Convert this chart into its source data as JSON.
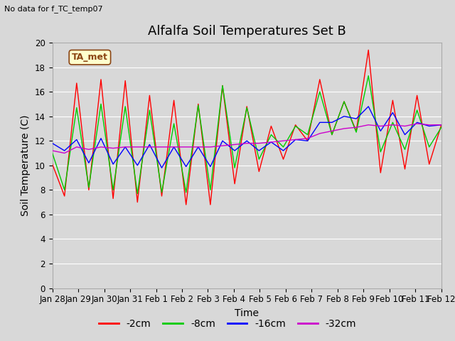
{
  "title": "Alfalfa Soil Temperatures Set B",
  "xlabel": "Time",
  "ylabel": "Soil Temperature (C)",
  "note": "No data for f_TC_temp07",
  "ta_met_label": "TA_met",
  "ylim": [
    0,
    20
  ],
  "yticks": [
    0,
    2,
    4,
    6,
    8,
    10,
    12,
    14,
    16,
    18,
    20
  ],
  "x_labels": [
    "Jan 28",
    "Jan 29",
    "Jan 30",
    "Jan 31",
    "Feb 1",
    "Feb 2",
    "Feb 3",
    "Feb 4",
    "Feb 5",
    "Feb 6",
    "Feb 7",
    "Feb 8",
    "Feb 9",
    "Feb 10",
    "Feb 11",
    "Feb 12"
  ],
  "colors": {
    "2cm": "#ff0000",
    "8cm": "#00cc00",
    "16cm": "#0000ff",
    "32cm": "#cc00cc"
  },
  "fig_bg_color": "#d8d8d8",
  "plot_bg_color": "#d8d8d8",
  "legend_labels": [
    "-2cm",
    "-8cm",
    "-16cm",
    "-32cm"
  ],
  "title_fontsize": 13,
  "axis_label_fontsize": 10,
  "tick_fontsize": 8.5,
  "note_fontsize": 8,
  "ta_met_fontsize": 9,
  "series_2cm": [
    10.1,
    7.5,
    16.7,
    8.0,
    17.0,
    7.3,
    16.9,
    7.0,
    15.7,
    7.5,
    15.3,
    6.8,
    15.0,
    6.8,
    16.5,
    8.5,
    14.8,
    9.5,
    13.2,
    10.5,
    13.3,
    12.0,
    17.0,
    12.5,
    15.2,
    12.8,
    19.4,
    9.4,
    15.3,
    9.7,
    15.7,
    10.1,
    13.3
  ],
  "series_8cm": [
    11.0,
    8.0,
    14.7,
    8.2,
    15.0,
    8.0,
    14.8,
    7.7,
    14.5,
    7.8,
    13.4,
    7.8,
    14.9,
    8.0,
    16.5,
    9.8,
    14.7,
    10.5,
    12.5,
    11.5,
    13.2,
    12.5,
    16.0,
    12.5,
    15.2,
    12.7,
    17.3,
    11.1,
    13.5,
    11.3,
    14.5,
    11.5,
    13.1
  ],
  "series_16cm": [
    11.8,
    11.2,
    12.1,
    10.2,
    12.2,
    10.1,
    11.5,
    10.0,
    11.7,
    9.8,
    11.5,
    9.9,
    11.5,
    9.9,
    12.0,
    11.2,
    12.0,
    11.2,
    11.9,
    11.2,
    12.1,
    12.0,
    13.5,
    13.5,
    14.0,
    13.8,
    14.8,
    12.8,
    14.3,
    12.5,
    13.5,
    13.2,
    13.3
  ],
  "series_32cm": [
    11.2,
    11.0,
    11.5,
    11.3,
    11.5,
    11.4,
    11.5,
    11.5,
    11.5,
    11.5,
    11.5,
    11.5,
    11.5,
    11.5,
    11.6,
    11.7,
    11.8,
    11.8,
    11.9,
    12.0,
    12.1,
    12.2,
    12.6,
    12.8,
    13.0,
    13.1,
    13.3,
    13.2,
    13.3,
    13.2,
    13.4,
    13.3,
    13.3
  ]
}
